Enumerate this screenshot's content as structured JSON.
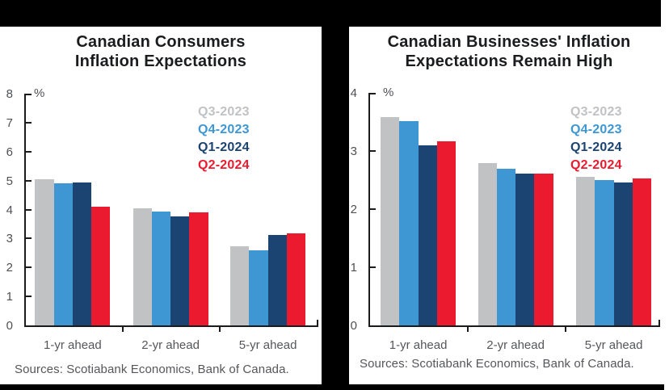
{
  "frame": {
    "background_color": "#000000",
    "panel_color": "#ffffff"
  },
  "source_note": "Sources: Scotiabank Economics, Bank of Canada.",
  "chart_data": [
    {
      "type": "bar",
      "title": "Canadian Consumers Inflation Expectations",
      "title_lines": [
        "Canadian Consumers",
        "Inflation Expectations"
      ],
      "ylabel": "%",
      "xlabel": "",
      "ylim": [
        0,
        8
      ],
      "yticks": [
        0,
        1,
        2,
        3,
        4,
        5,
        6,
        7,
        8
      ],
      "grid": false,
      "legend_position": "top-right",
      "categories": [
        "1-yr ahead",
        "2-yr ahead",
        "5-yr ahead"
      ],
      "series": [
        {
          "name": "Q3-2023",
          "color": "#C1C2C4",
          "values": [
            5.04,
            4.05,
            2.74
          ]
        },
        {
          "name": "Q4-2023",
          "color": "#3E97D2",
          "values": [
            4.9,
            3.92,
            2.6
          ]
        },
        {
          "name": "Q1-2024",
          "color": "#1C4473",
          "values": [
            4.93,
            3.77,
            3.12
          ]
        },
        {
          "name": "Q2-2024",
          "color": "#EB1A2E",
          "values": [
            4.1,
            3.89,
            3.19
          ]
        }
      ],
      "source": "Sources: Scotiabank Economics, Bank of Canada."
    },
    {
      "type": "bar",
      "title": "Canadian Businesses' Inflation Expectations Remain High",
      "title_lines": [
        "Canadian Businesses' Inflation",
        "Expectations Remain High"
      ],
      "ylabel": "%",
      "xlabel": "",
      "ylim": [
        0,
        4
      ],
      "yticks": [
        0,
        1,
        2,
        3,
        4
      ],
      "grid": false,
      "legend_position": "top-right",
      "categories": [
        "1-yr ahead",
        "2-yr ahead",
        "5-yr ahead"
      ],
      "series": [
        {
          "name": "Q3-2023",
          "color": "#C1C2C4",
          "values": [
            3.59,
            2.79,
            2.56
          ]
        },
        {
          "name": "Q4-2023",
          "color": "#3E97D2",
          "values": [
            3.52,
            2.7,
            2.5
          ]
        },
        {
          "name": "Q1-2024",
          "color": "#1C4473",
          "values": [
            3.1,
            2.61,
            2.46
          ]
        },
        {
          "name": "Q2-2024",
          "color": "#EB1A2E",
          "values": [
            3.17,
            2.61,
            2.53
          ]
        }
      ],
      "source": "Sources: Scotiabank Economics, Bank of Canada."
    }
  ]
}
